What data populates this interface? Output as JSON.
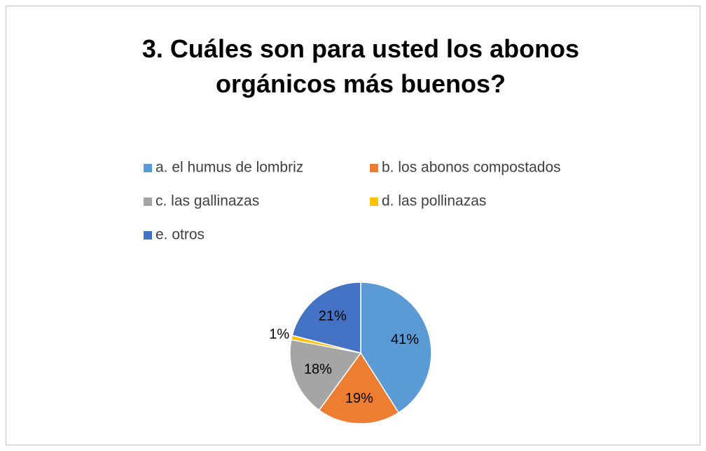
{
  "chart_data": {
    "type": "pie",
    "title": "3. Cuáles son para usted los abonos orgánicos más buenos?",
    "categories": [
      "a. el humus de lombriz",
      "b. los abonos compostados",
      "c. las gallinazas",
      "d. las pollinazas",
      "e. otros"
    ],
    "values": [
      41,
      19,
      18,
      1,
      21
    ],
    "value_labels": [
      "41%",
      "19%",
      "18%",
      "1%",
      "21%"
    ],
    "colors": [
      "#5b9bd5",
      "#ed7d31",
      "#a5a5a5",
      "#ffc000",
      "#4472c4"
    ],
    "legend": "top"
  }
}
